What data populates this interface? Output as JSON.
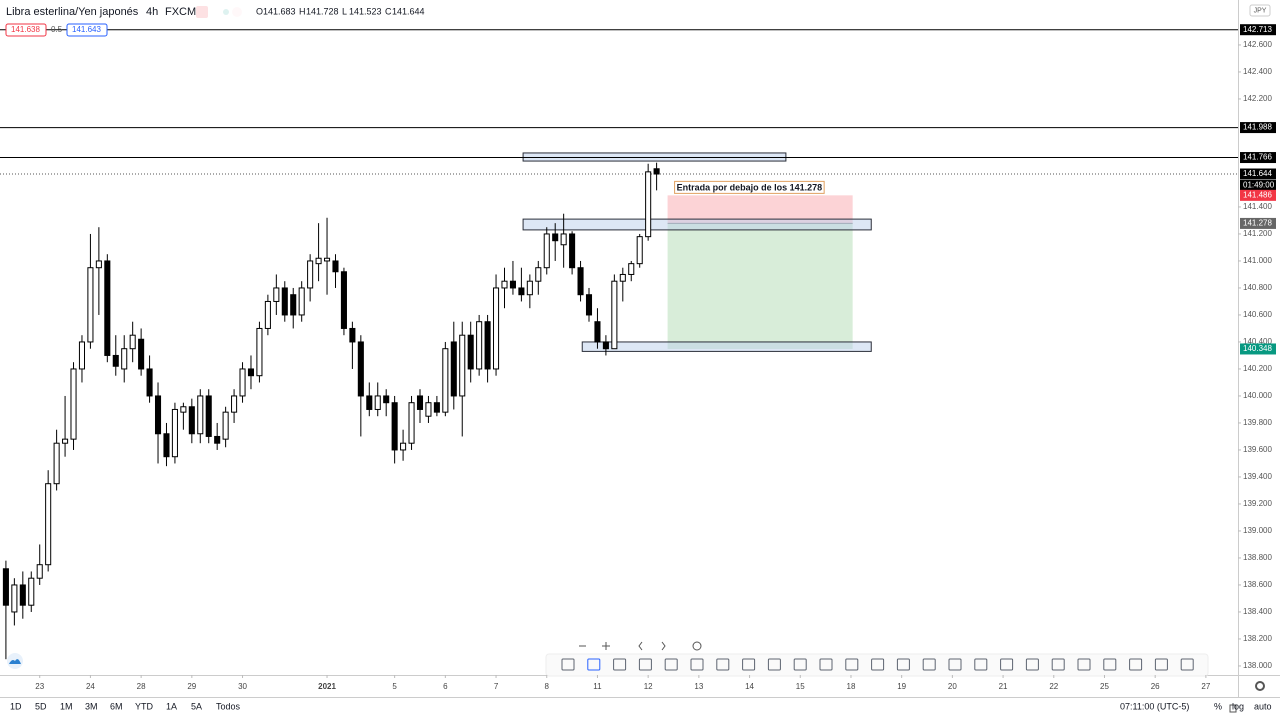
{
  "header": {
    "symbol": "Libra esterlina/Yen japonés",
    "interval": "4h",
    "source": "FXCM",
    "ohlc_letters": [
      "O",
      "H",
      "L",
      "C"
    ],
    "ohlc_values": [
      141.683,
      141.728,
      141.523,
      141.644
    ],
    "bid": 141.638,
    "spread": 0.5,
    "ask": 141.643,
    "currency": "JPY"
  },
  "chart_data": {
    "type": "candlestick",
    "up_color": "#ffffff",
    "down_color": "#000000",
    "wick_color": "#000000",
    "ohlc": [
      [
        138.72,
        138.78,
        138.05,
        138.45
      ],
      [
        138.4,
        138.65,
        138.3,
        138.6
      ],
      [
        138.6,
        138.7,
        138.35,
        138.45
      ],
      [
        138.45,
        138.7,
        138.4,
        138.65
      ],
      [
        138.65,
        138.9,
        138.6,
        138.75
      ],
      [
        138.75,
        139.45,
        138.7,
        139.35
      ],
      [
        139.35,
        139.75,
        139.3,
        139.65
      ],
      [
        139.65,
        140.0,
        139.55,
        139.68
      ],
      [
        139.68,
        140.25,
        139.6,
        140.2
      ],
      [
        140.2,
        140.45,
        140.1,
        140.4
      ],
      [
        140.4,
        141.2,
        140.35,
        140.95
      ],
      [
        140.95,
        141.25,
        140.6,
        141.0
      ],
      [
        141.0,
        141.05,
        140.25,
        140.3
      ],
      [
        140.3,
        140.45,
        140.15,
        140.22
      ],
      [
        140.2,
        140.45,
        140.1,
        140.35
      ],
      [
        140.35,
        140.55,
        140.25,
        140.45
      ],
      [
        140.42,
        140.5,
        140.15,
        140.2
      ],
      [
        140.2,
        140.3,
        139.95,
        140.0
      ],
      [
        140.0,
        140.1,
        139.5,
        139.72
      ],
      [
        139.72,
        139.8,
        139.48,
        139.55
      ],
      [
        139.55,
        139.95,
        139.5,
        139.9
      ],
      [
        139.88,
        139.95,
        139.75,
        139.92
      ],
      [
        139.92,
        139.98,
        139.65,
        139.72
      ],
      [
        139.72,
        140.05,
        139.65,
        140.0
      ],
      [
        140.0,
        140.05,
        139.65,
        139.7
      ],
      [
        139.7,
        139.8,
        139.6,
        139.65
      ],
      [
        139.68,
        139.92,
        139.62,
        139.88
      ],
      [
        139.88,
        140.05,
        139.8,
        140.0
      ],
      [
        140.0,
        140.25,
        139.95,
        140.2
      ],
      [
        140.2,
        140.3,
        140.05,
        140.15
      ],
      [
        140.15,
        140.55,
        140.1,
        140.5
      ],
      [
        140.5,
        140.75,
        140.45,
        140.7
      ],
      [
        140.7,
        140.9,
        140.6,
        140.8
      ],
      [
        140.8,
        140.85,
        140.55,
        140.6
      ],
      [
        140.75,
        140.8,
        140.5,
        140.6
      ],
      [
        140.6,
        140.85,
        140.55,
        140.8
      ],
      [
        140.8,
        141.05,
        140.7,
        141.0
      ],
      [
        140.98,
        141.28,
        140.85,
        141.02
      ],
      [
        141.0,
        141.32,
        140.75,
        141.02
      ],
      [
        141.0,
        141.05,
        140.8,
        140.92
      ],
      [
        140.92,
        140.95,
        140.45,
        140.5
      ],
      [
        140.5,
        140.55,
        140.2,
        140.4
      ],
      [
        140.4,
        140.45,
        139.7,
        140.0
      ],
      [
        140.0,
        140.1,
        139.85,
        139.9
      ],
      [
        139.9,
        140.1,
        139.85,
        140.0
      ],
      [
        140.0,
        140.05,
        139.85,
        139.95
      ],
      [
        139.95,
        140.0,
        139.5,
        139.6
      ],
      [
        139.6,
        139.75,
        139.52,
        139.65
      ],
      [
        139.65,
        140.0,
        139.6,
        139.95
      ],
      [
        140.0,
        140.05,
        139.8,
        139.9
      ],
      [
        139.85,
        140.0,
        139.8,
        139.95
      ],
      [
        139.95,
        140.0,
        139.85,
        139.88
      ],
      [
        139.88,
        140.4,
        139.85,
        140.35
      ],
      [
        140.4,
        140.55,
        139.9,
        140.0
      ],
      [
        140.0,
        140.55,
        139.7,
        140.45
      ],
      [
        140.45,
        140.55,
        140.1,
        140.2
      ],
      [
        140.2,
        140.6,
        140.15,
        140.55
      ],
      [
        140.55,
        140.6,
        140.1,
        140.2
      ],
      [
        140.2,
        140.9,
        140.15,
        140.8
      ],
      [
        140.8,
        140.95,
        140.65,
        140.85
      ],
      [
        140.85,
        141.0,
        140.75,
        140.8
      ],
      [
        140.8,
        140.95,
        140.7,
        140.75
      ],
      [
        140.75,
        140.9,
        140.65,
        140.85
      ],
      [
        140.85,
        141.0,
        140.75,
        140.95
      ],
      [
        140.95,
        141.25,
        140.9,
        141.2
      ],
      [
        141.2,
        141.28,
        141.0,
        141.15
      ],
      [
        141.12,
        141.35,
        140.95,
        141.2
      ],
      [
        141.2,
        141.22,
        140.9,
        140.95
      ],
      [
        140.95,
        141.0,
        140.7,
        140.75
      ],
      [
        140.75,
        140.8,
        140.55,
        140.6
      ],
      [
        140.55,
        140.65,
        140.35,
        140.4
      ],
      [
        140.4,
        140.45,
        140.3,
        140.35
      ],
      [
        140.35,
        140.9,
        140.35,
        140.85
      ],
      [
        140.85,
        140.95,
        140.7,
        140.9
      ],
      [
        140.9,
        141.0,
        140.85,
        140.98
      ],
      [
        140.98,
        141.2,
        140.95,
        141.18
      ],
      [
        141.18,
        141.72,
        141.15,
        141.66
      ],
      [
        141.683,
        141.728,
        141.523,
        141.644
      ]
    ],
    "xlim": [
      -0.7,
      145.8
    ],
    "ylim": [
      137.933,
      142.933
    ],
    "xticks": [
      {
        "value": 4,
        "label": "23"
      },
      {
        "value": 10,
        "label": "24"
      },
      {
        "value": 16,
        "label": "28"
      },
      {
        "value": 22,
        "label": "29"
      },
      {
        "value": 28,
        "label": "30"
      },
      {
        "value": 38,
        "label": "2021"
      },
      {
        "value": 46,
        "label": "5"
      },
      {
        "value": 52,
        "label": "6"
      },
      {
        "value": 58,
        "label": "7"
      },
      {
        "value": 64,
        "label": "8"
      },
      {
        "value": 70,
        "label": "11"
      },
      {
        "value": 76,
        "label": "12"
      },
      {
        "value": 82,
        "label": "13"
      },
      {
        "value": 88,
        "label": "14"
      },
      {
        "value": 94,
        "label": "15"
      },
      {
        "value": 100,
        "label": "18"
      },
      {
        "value": 106,
        "label": "19"
      },
      {
        "value": 112,
        "label": "20"
      },
      {
        "value": 118,
        "label": "21"
      },
      {
        "value": 124,
        "label": "22"
      },
      {
        "value": 130,
        "label": "25"
      },
      {
        "value": 136,
        "label": "26"
      },
      {
        "value": 142,
        "label": "27"
      }
    ],
    "yticks": [
      {
        "value": 138,
        "label": "138.000"
      },
      {
        "value": 138.2,
        "label": "138.200"
      },
      {
        "value": 138.4,
        "label": "138.400"
      },
      {
        "value": 138.6,
        "label": "138.600"
      },
      {
        "value": 138.8,
        "label": "138.800"
      },
      {
        "value": 139,
        "label": "139.000"
      },
      {
        "value": 139.2,
        "label": "139.200"
      },
      {
        "value": 139.4,
        "label": "139.400"
      },
      {
        "value": 139.6,
        "label": "139.600"
      },
      {
        "value": 139.8,
        "label": "139.800"
      },
      {
        "value": 140,
        "label": "140.000"
      },
      {
        "value": 140.2,
        "label": "140.200"
      },
      {
        "value": 140.4,
        "label": "140.400"
      },
      {
        "value": 140.6,
        "label": "140.600"
      },
      {
        "value": 140.8,
        "label": "140.800"
      },
      {
        "value": 141,
        "label": "141.000"
      },
      {
        "value": 141.2,
        "label": "141.200"
      },
      {
        "value": 141.4,
        "label": "141.400"
      },
      {
        "value": 142.2,
        "label": "142.200"
      },
      {
        "value": 142.4,
        "label": "142.400"
      },
      {
        "value": 142.6,
        "label": "142.600"
      }
    ],
    "price_lines": [
      142.713,
      141.988,
      141.766
    ],
    "current_price": 141.644,
    "countdown": "01:49:00",
    "zones": [
      {
        "x": [
          61.2,
          92.3
        ],
        "y": [
          141.74,
          141.8
        ]
      },
      {
        "x": [
          61.2,
          102.4
        ],
        "y": [
          141.23,
          141.31
        ]
      },
      {
        "x": [
          68.2,
          102.4
        ],
        "y": [
          140.33,
          140.4
        ]
      }
    ],
    "position": {
      "x": [
        78.3,
        100.2
      ],
      "stop": 141.486,
      "entry": 141.278,
      "target": 140.348,
      "label": "Entrada por debajo de los 141.278"
    }
  },
  "bottom_bar": {
    "ranges": [
      "1D",
      "5D",
      "1M",
      "3M",
      "6M",
      "YTD",
      "1A",
      "5A",
      "Todos"
    ],
    "time": "07:11:00 (UTC-5)",
    "options": [
      "%",
      "log",
      "auto"
    ]
  }
}
